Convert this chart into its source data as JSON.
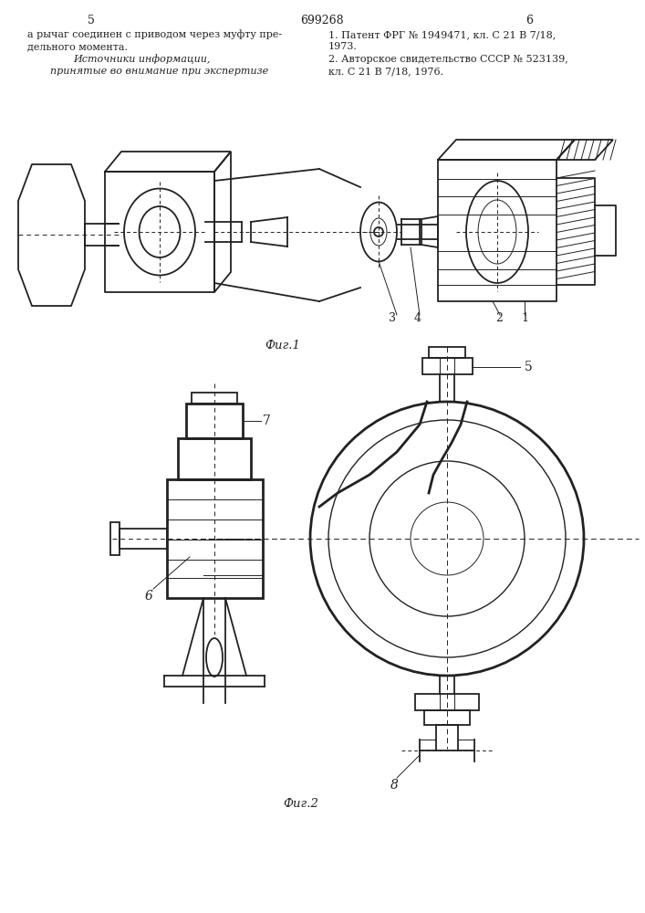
{
  "page_number_left": "5",
  "patent_number": "699268",
  "page_number_right": "6",
  "left_text_line1": "а рычаг соединен с приводом через муфту пре-",
  "left_text_line2": "дельного момента.",
  "left_text_line3": "Источники информации,",
  "left_text_line4": "принятые во внимание при экспертизе",
  "right_text_line1": "1. Патент ФРГ № 1949471, кл. С 21 В 7/18,",
  "right_text_line2": "1973.",
  "right_text_line3": "2. Авторское свидетельство СССР № 523139,",
  "right_text_line4": "кл. С 21 В 7/18, 1976.",
  "fig1_label": "Фиг.1",
  "fig2_label": "Фиг.2",
  "bg_color": "#ffffff",
  "line_color": "#222222",
  "text_color": "#222222"
}
